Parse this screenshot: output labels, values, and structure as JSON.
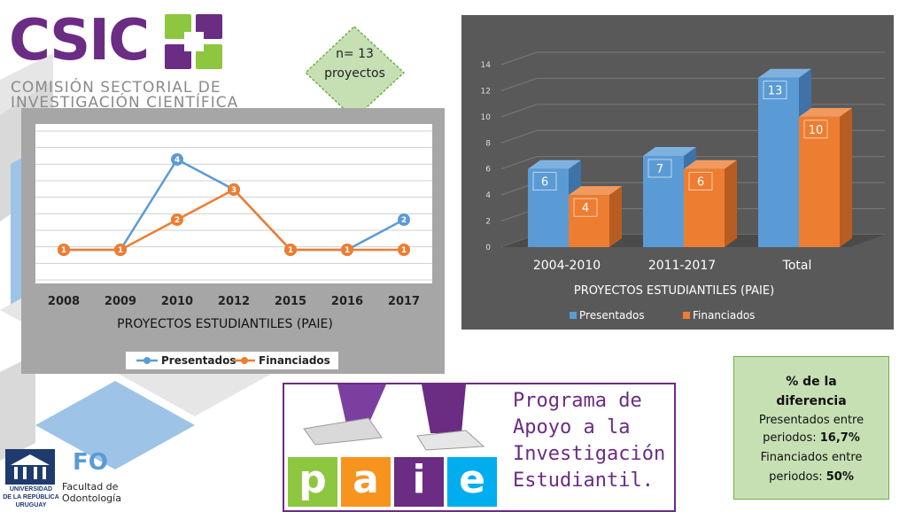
{
  "logo": {
    "name": "CSIC",
    "subtitle_line1": "COMISIÓN SECTORIAL DE",
    "subtitle_line2": "INVESTIGACIÓN CIENTÍFICA",
    "purple": "#6b2c83",
    "green": "#8dc63f"
  },
  "n_box": {
    "line1": "n= 13",
    "line2": "proyectos"
  },
  "chart_data": [
    {
      "type": "line",
      "categories": [
        "2008",
        "2009",
        "2010",
        "2012",
        "2015",
        "2016",
        "2017"
      ],
      "series": [
        {
          "name": "Presentados",
          "color": "#5b9bd5",
          "values": [
            1,
            1,
            4,
            3,
            1,
            1,
            2
          ]
        },
        {
          "name": "Financiados",
          "color": "#ed7d31",
          "values": [
            1,
            1,
            2,
            3,
            1,
            1,
            1
          ]
        }
      ],
      "title": "PROYECTOS ESTUDIANTILES (PAIE)",
      "ylim": [
        0,
        5
      ],
      "grid": true,
      "legend": "bottom"
    },
    {
      "type": "bar",
      "categories": [
        "2004-2010",
        "2011-2017",
        "Total"
      ],
      "series": [
        {
          "name": "Presentados",
          "color": "#5b9bd5",
          "values": [
            6,
            7,
            13
          ]
        },
        {
          "name": "Financiados",
          "color": "#ed7d31",
          "values": [
            4,
            6,
            10
          ]
        }
      ],
      "title": "PROYECTOS ESTUDIANTILES (PAIE)",
      "ylim": [
        0,
        14
      ],
      "yticks": [
        0,
        2,
        4,
        6,
        8,
        10,
        12,
        14
      ],
      "grid": true,
      "legend": "bottom"
    }
  ],
  "paie": {
    "title_lines": [
      "Programa de",
      "Apoyo a la",
      "Investigación",
      "Estudiantil."
    ],
    "letters": [
      "p",
      "a",
      "i",
      "e"
    ],
    "letter_colors": [
      "#8dc63f",
      "#f7941d",
      "#6b2c83",
      "#00aeef"
    ]
  },
  "diff_box": {
    "heading1": "% de la",
    "heading2": "diferencia",
    "line1": "Presentados entre",
    "line2_label": "periodos: ",
    "line2_value": "16,7%",
    "line3": "Financiados entre",
    "line4_label": "periodos: ",
    "line4_value": "50%"
  },
  "faculty": {
    "univ_line1": "UNIVERSIDAD",
    "univ_line2": "DE LA REPÚBLICA",
    "univ_line3": "URUGUAY",
    "fo": "FO",
    "fac_line1": "Facultad de",
    "fac_line2": "Odontología"
  }
}
